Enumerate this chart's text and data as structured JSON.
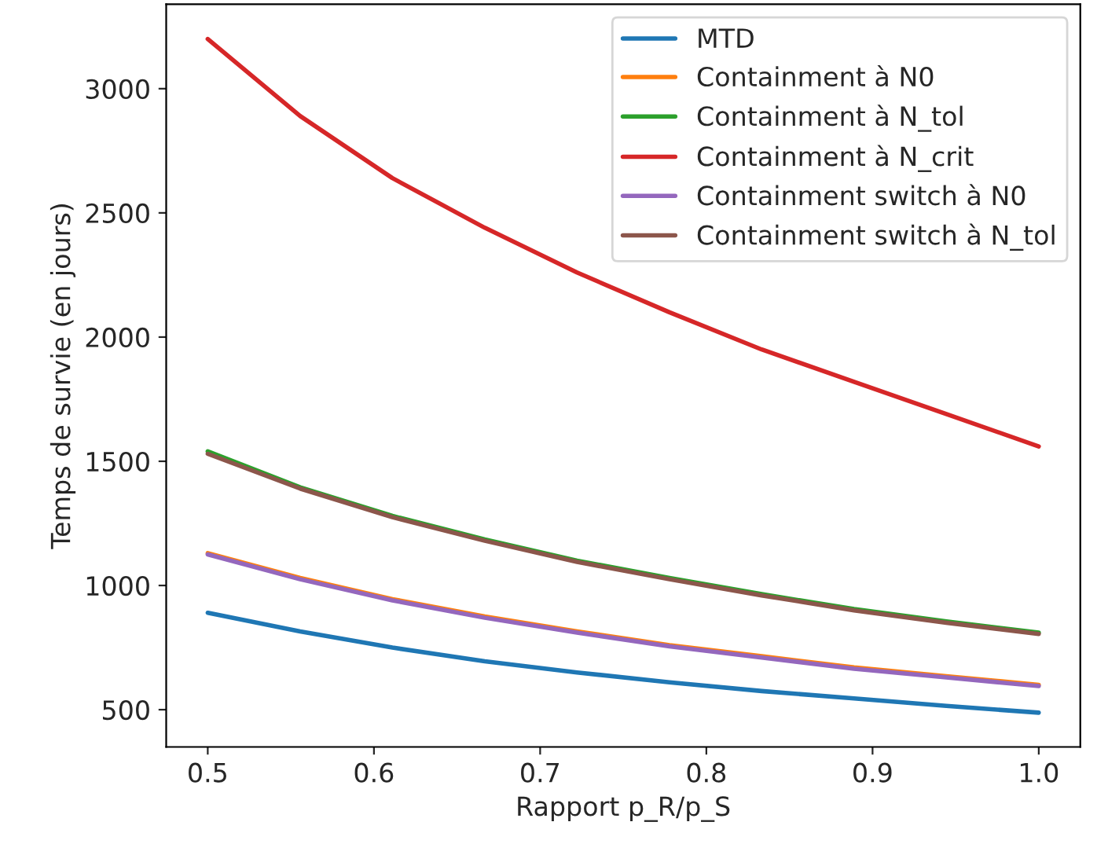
{
  "chart_data": {
    "type": "line",
    "xlabel": "Rapport p_R/p_S",
    "ylabel": "Temps de survie (en jours)",
    "x": [
      0.5,
      0.5556,
      0.6111,
      0.6667,
      0.7222,
      0.7778,
      0.8333,
      0.8889,
      0.9444,
      1.0
    ],
    "xlim": [
      0.475,
      1.025
    ],
    "xticks": [
      0.5,
      0.6,
      0.7,
      0.8,
      0.9,
      {
        "value": 1.0,
        "label": "1.0"
      }
    ],
    "ylim": [
      350,
      3340
    ],
    "yticks": [
      500,
      1000,
      1500,
      2000,
      2500,
      3000
    ],
    "grid": false,
    "legend": "top right",
    "marker": "none",
    "line_style": "solid",
    "series": [
      {
        "name": "MTD",
        "color": "#1f77b4",
        "values": [
          890,
          815,
          750,
          695,
          650,
          610,
          575,
          545,
          515,
          488
        ]
      },
      {
        "name": "Containment à N0",
        "color": "#ff7f0e",
        "values": [
          1130,
          1030,
          945,
          875,
          815,
          760,
          715,
          670,
          635,
          600
        ]
      },
      {
        "name": "Containment à N_tol",
        "color": "#2ca02c",
        "values": [
          1540,
          1395,
          1280,
          1185,
          1100,
          1030,
          965,
          905,
          855,
          810
        ]
      },
      {
        "name": "Containment à N_crit",
        "color": "#d62728",
        "values": [
          3200,
          2890,
          2640,
          2440,
          2260,
          2100,
          1950,
          1820,
          1690,
          1560
        ]
      },
      {
        "name": "Containment switch à N0",
        "color": "#9467bd",
        "values": [
          1125,
          1025,
          940,
          870,
          810,
          755,
          710,
          665,
          630,
          595
        ]
      },
      {
        "name": "Containment switch à N_tol",
        "color": "#8c564b",
        "values": [
          1530,
          1390,
          1275,
          1180,
          1095,
          1025,
          960,
          900,
          850,
          805
        ]
      }
    ]
  }
}
